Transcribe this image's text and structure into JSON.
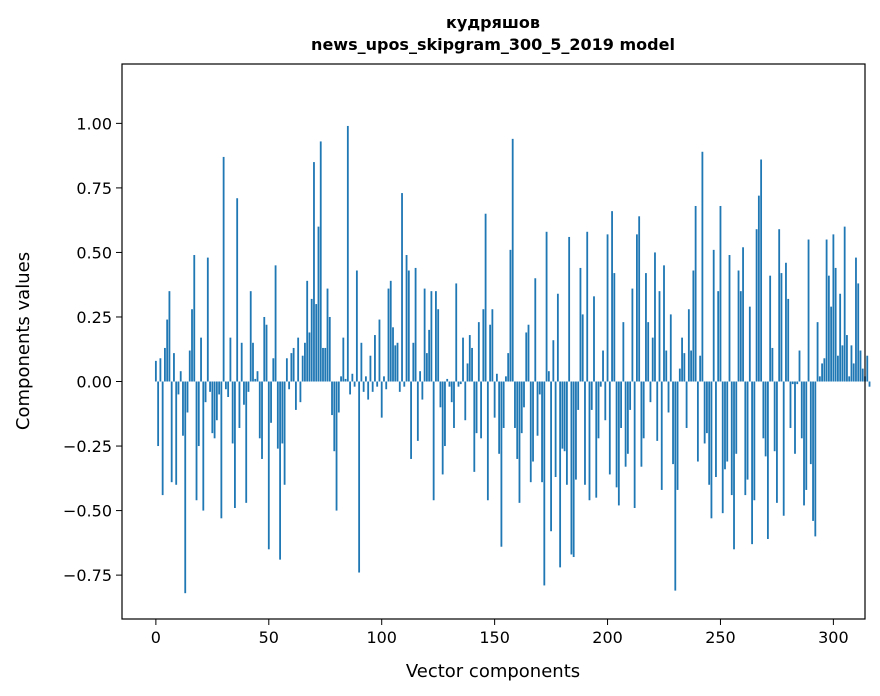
{
  "chart_data": {
    "type": "bar",
    "title": "кудряшов",
    "subtitle": "news_upos_skipgram_300_5_2019 model",
    "xlabel": "Vector components",
    "ylabel": "Components values",
    "xlim": [
      -15,
      314
    ],
    "ylim": [
      -0.92,
      1.23
    ],
    "xticks": [
      0,
      50,
      100,
      150,
      200,
      250,
      300
    ],
    "yticks": [
      -0.75,
      -0.5,
      -0.25,
      0.0,
      0.25,
      0.5,
      0.75,
      1.0
    ],
    "ytick_labels": [
      "−0.75",
      "−0.50",
      "−0.25",
      "0.00",
      "0.25",
      "0.50",
      "0.75",
      "1.00"
    ],
    "xtick_labels": [
      "0",
      "50",
      "100",
      "150",
      "200",
      "250",
      "300"
    ],
    "bar_color": "#1f77b4",
    "grid": false,
    "values": [
      0.08,
      -0.25,
      0.09,
      -0.44,
      0.13,
      0.24,
      0.35,
      -0.39,
      0.11,
      -0.4,
      -0.05,
      0.04,
      -0.21,
      -0.82,
      -0.12,
      0.12,
      0.28,
      0.49,
      -0.46,
      -0.25,
      0.17,
      -0.5,
      -0.08,
      0.48,
      -0.04,
      -0.2,
      -0.22,
      -0.15,
      -0.05,
      -0.53,
      0.87,
      -0.03,
      -0.06,
      0.17,
      -0.24,
      -0.49,
      0.71,
      -0.18,
      0.15,
      -0.09,
      -0.47,
      -0.04,
      0.35,
      0.15,
      0.01,
      0.04,
      -0.22,
      -0.3,
      0.25,
      0.22,
      -0.65,
      -0.16,
      0.09,
      0.45,
      -0.26,
      -0.69,
      -0.24,
      -0.4,
      0.09,
      -0.03,
      0.11,
      0.13,
      -0.11,
      0.17,
      -0.08,
      0.1,
      0.15,
      0.39,
      0.19,
      0.32,
      0.85,
      0.3,
      0.6,
      0.93,
      0.13,
      0.13,
      0.36,
      0.25,
      -0.13,
      -0.27,
      -0.5,
      -0.12,
      0.02,
      0.17,
      0.01,
      0.99,
      -0.05,
      0.03,
      -0.02,
      0.43,
      -0.74,
      0.15,
      -0.04,
      0.02,
      -0.07,
      0.1,
      -0.04,
      0.18,
      -0.02,
      0.24,
      -0.14,
      0.02,
      -0.03,
      0.36,
      0.39,
      0.21,
      0.14,
      0.15,
      -0.04,
      0.73,
      -0.02,
      0.49,
      0.43,
      -0.3,
      0.15,
      0.44,
      -0.23,
      0.04,
      -0.07,
      0.36,
      0.11,
      0.2,
      0.35,
      -0.46,
      0.35,
      0.28,
      -0.1,
      -0.36,
      -0.25,
      0.01,
      -0.02,
      -0.08,
      -0.18,
      0.38,
      -0.02,
      -0.01,
      0.17,
      -0.15,
      0.07,
      0.18,
      0.13,
      -0.35,
      -0.2,
      0.23,
      -0.22,
      0.28,
      0.65,
      -0.46,
      0.22,
      0.28,
      -0.14,
      0.03,
      -0.28,
      -0.64,
      -0.18,
      0.02,
      0.11,
      0.51,
      0.94,
      -0.18,
      -0.3,
      -0.47,
      -0.2,
      -0.1,
      0.19,
      0.22,
      -0.39,
      -0.31,
      0.4,
      -0.21,
      -0.05,
      -0.39,
      -0.79,
      0.58,
      0.04,
      -0.58,
      0.16,
      -0.37,
      0.34,
      -0.72,
      -0.26,
      -0.27,
      -0.4,
      0.56,
      -0.67,
      -0.68,
      -0.38,
      -0.11,
      0.44,
      0.26,
      -0.4,
      0.58,
      -0.46,
      -0.11,
      0.33,
      -0.45,
      -0.22,
      -0.02,
      0.12,
      -0.15,
      0.57,
      -0.36,
      0.66,
      0.42,
      -0.41,
      -0.48,
      -0.18,
      0.23,
      -0.33,
      -0.28,
      -0.11,
      0.36,
      -0.49,
      0.57,
      0.64,
      -0.33,
      -0.22,
      0.42,
      0.23,
      -0.08,
      0.17,
      0.5,
      -0.23,
      0.35,
      -0.42,
      0.45,
      0.12,
      -0.12,
      0.26,
      -0.32,
      -0.81,
      -0.42,
      0.05,
      0.17,
      0.11,
      -0.18,
      0.28,
      0.12,
      0.43,
      0.68,
      -0.31,
      0.1,
      0.89,
      -0.24,
      -0.2,
      -0.4,
      -0.53,
      0.51,
      -0.37,
      0.35,
      0.68,
      -0.51,
      -0.34,
      -0.31,
      0.49,
      -0.44,
      -0.65,
      -0.28,
      0.43,
      0.35,
      0.52,
      -0.44,
      -0.38,
      0.29,
      -0.63,
      -0.46,
      0.59,
      0.72,
      0.86,
      -0.22,
      -0.29,
      -0.61,
      0.41,
      0.13,
      -0.27,
      -0.47,
      0.59,
      0.42,
      -0.52,
      0.46,
      0.32,
      -0.18,
      -0.01,
      -0.28,
      -0.01,
      0.12,
      -0.22,
      -0.48,
      -0.42,
      0.55,
      -0.32,
      -0.54,
      -0.6,
      0.23,
      0.02,
      0.07,
      0.09,
      0.55,
      0.41,
      0.29,
      0.57,
      0.44,
      0.1,
      0.34,
      0.14,
      0.6,
      0.18,
      0.02,
      0.14,
      0.07,
      0.48,
      0.38,
      0.12,
      0.05,
      0.02,
      0.1,
      -0.02
    ]
  }
}
